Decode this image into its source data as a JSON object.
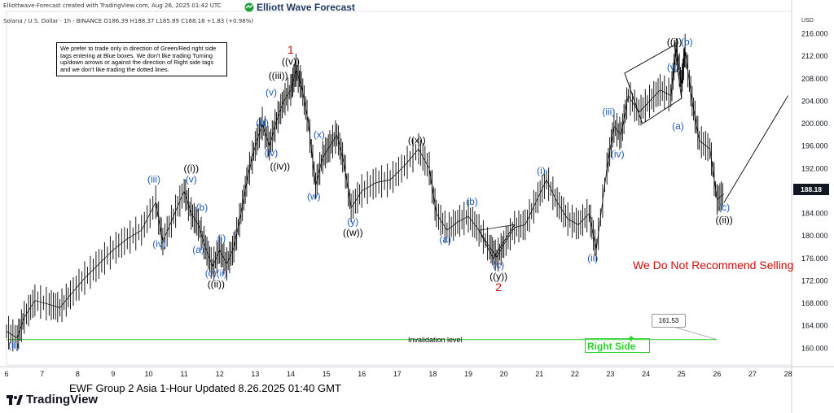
{
  "header": {
    "created_by": "Elliottwave-Forecast created with TradingView.com, Aug 26, 2025 01:42 UTC",
    "symbol_line": "Solana / U.S. Dollar · 1h · BINANCE  O186.39  H188.37  L185.89  C188.18  +1.83 (+0.98%)",
    "brand": "Elliott Wave Forecast",
    "currency": "USD"
  },
  "note": "We prefer to trade only in direction of Green/Red right side tags entering at Blue boxes. We don't like trading Turning up/down arrows or against the direction of Right side tags and we don't like trading the dotted lines.",
  "footer": "EWF Group 2 Asia 1-Hour Updated 8.26.2025 01:40 GMT",
  "tv_logo": "TradingView",
  "warning": "We Do Not Recommend Selling",
  "invalidation": {
    "label": "Invalidation level",
    "price": 161.53,
    "price_label": "161.53"
  },
  "right_side_tag": "Right Side",
  "current_price": "188.18",
  "colors": {
    "wave_blue": "#1e5bb8",
    "wave_black": "#000000",
    "wave_red": "#d10a0a",
    "green": "#2bd12b",
    "candle": "#000000"
  },
  "chart_data": {
    "type": "line",
    "title": "",
    "ylabel": "USD",
    "ylim": [
      157,
      220
    ],
    "xlim": [
      6,
      28.1
    ],
    "y_ticks": [
      160,
      164,
      168,
      172,
      176,
      180,
      184,
      188,
      192,
      196,
      200,
      204,
      208,
      212,
      216
    ],
    "x_ticks": [
      {
        "x": 6,
        "label": "6"
      },
      {
        "x": 7,
        "label": "7"
      },
      {
        "x": 8,
        "label": "8"
      },
      {
        "x": 9,
        "label": "9"
      },
      {
        "x": 10,
        "label": "10"
      },
      {
        "x": 11,
        "label": "11"
      },
      {
        "x": 12,
        "label": "12"
      },
      {
        "x": 13,
        "label": "13"
      },
      {
        "x": 14,
        "label": "14"
      },
      {
        "x": 15,
        "label": "15"
      },
      {
        "x": 16,
        "label": "16"
      },
      {
        "x": 17,
        "label": "17"
      },
      {
        "x": 18,
        "label": "18"
      },
      {
        "x": 19,
        "label": "19"
      },
      {
        "x": 20,
        "label": "20"
      },
      {
        "x": 21,
        "label": "21"
      },
      {
        "x": 22,
        "label": "22"
      },
      {
        "x": 23,
        "label": "23"
      },
      {
        "x": 24,
        "label": "24"
      },
      {
        "x": 25,
        "label": "25"
      },
      {
        "x": 26,
        "label": "26"
      },
      {
        "x": 27,
        "label": "27"
      },
      {
        "x": 28,
        "label": "28"
      }
    ],
    "price_path": [
      [
        6.0,
        163.0
      ],
      [
        6.3,
        161.8
      ],
      [
        6.5,
        165.5
      ],
      [
        6.8,
        168.5
      ],
      [
        7.2,
        167.8
      ],
      [
        7.5,
        167.2
      ],
      [
        7.8,
        169.5
      ],
      [
        8.2,
        172.5
      ],
      [
        8.6,
        175.0
      ],
      [
        9.0,
        177.5
      ],
      [
        9.4,
        179.5
      ],
      [
        9.8,
        181.0
      ],
      [
        10.2,
        186.0
      ],
      [
        10.4,
        179.0
      ],
      [
        10.7,
        183.5
      ],
      [
        11.0,
        188.0
      ],
      [
        11.2,
        184.0
      ],
      [
        11.4,
        182.0
      ],
      [
        11.6,
        178.0
      ],
      [
        11.8,
        174.5
      ],
      [
        12.0,
        177.5
      ],
      [
        12.2,
        175.0
      ],
      [
        12.4,
        178.0
      ],
      [
        12.6,
        184.0
      ],
      [
        12.8,
        191.0
      ],
      [
        13.0,
        196.0
      ],
      [
        13.2,
        200.0
      ],
      [
        13.4,
        196.0
      ],
      [
        13.6,
        200.5
      ],
      [
        13.8,
        204.0
      ],
      [
        14.0,
        206.0
      ],
      [
        14.15,
        209.5
      ],
      [
        14.3,
        207.0
      ],
      [
        14.5,
        200.0
      ],
      [
        14.7,
        189.0
      ],
      [
        14.9,
        194.0
      ],
      [
        15.1,
        196.0
      ],
      [
        15.3,
        198.0
      ],
      [
        15.5,
        193.0
      ],
      [
        15.7,
        185.0
      ],
      [
        16.0,
        188.0
      ],
      [
        16.4,
        189.5
      ],
      [
        16.8,
        190.0
      ],
      [
        17.2,
        192.5
      ],
      [
        17.6,
        195.5
      ],
      [
        17.9,
        192.0
      ],
      [
        18.1,
        184.0
      ],
      [
        18.4,
        181.0
      ],
      [
        18.7,
        182.5
      ],
      [
        19.0,
        183.5
      ],
      [
        19.3,
        181.0
      ],
      [
        19.6,
        178.0
      ],
      [
        19.8,
        176.2
      ],
      [
        20.0,
        178.5
      ],
      [
        20.3,
        181.5
      ],
      [
        20.6,
        182.0
      ],
      [
        20.9,
        186.0
      ],
      [
        21.2,
        190.0
      ],
      [
        21.5,
        186.0
      ],
      [
        21.8,
        183.0
      ],
      [
        22.1,
        182.0
      ],
      [
        22.4,
        184.0
      ],
      [
        22.6,
        177.5
      ],
      [
        22.9,
        192.0
      ],
      [
        23.1,
        199.5
      ],
      [
        23.3,
        198.0
      ],
      [
        23.5,
        205.0
      ],
      [
        23.8,
        202.0
      ],
      [
        24.1,
        204.0
      ],
      [
        24.4,
        206.0
      ],
      [
        24.7,
        205.0
      ],
      [
        24.85,
        213.5
      ],
      [
        25.0,
        207.0
      ],
      [
        25.1,
        213.0
      ],
      [
        25.3,
        204.0
      ],
      [
        25.5,
        197.0
      ],
      [
        25.8,
        195.5
      ],
      [
        26.0,
        186.5
      ],
      [
        26.2,
        187.5
      ]
    ],
    "projection": [
      [
        26.2,
        186.0
      ],
      [
        28.0,
        205.0
      ]
    ],
    "channel_upper": [
      [
        23.4,
        209.0
      ],
      [
        24.8,
        214.0
      ]
    ],
    "channel_lower": [
      [
        23.9,
        200.0
      ],
      [
        25.0,
        204.5
      ]
    ],
    "dotted_triangle": [
      [
        19.3,
        181.0
      ],
      [
        19.7,
        176.0
      ],
      [
        20.3,
        182.0
      ]
    ],
    "invalidation_line": [
      [
        6.0,
        161.53
      ],
      [
        26.0,
        161.53
      ]
    ],
    "labels": [
      {
        "x": 6.2,
        "y": 160.0,
        "text": "(ii)",
        "color": "blue"
      },
      {
        "x": 10.15,
        "y": 189.5,
        "text": "(iii)",
        "color": "blue"
      },
      {
        "x": 10.3,
        "y": 178.0,
        "text": "(iv)",
        "color": "blue"
      },
      {
        "x": 11.2,
        "y": 191.5,
        "text": "((i))",
        "color": "black"
      },
      {
        "x": 11.2,
        "y": 189.5,
        "text": "(v)",
        "color": "blue"
      },
      {
        "x": 11.5,
        "y": 184.5,
        "text": "(b)",
        "color": "blue"
      },
      {
        "x": 11.4,
        "y": 177.0,
        "text": "(a)",
        "color": "blue"
      },
      {
        "x": 12.05,
        "y": 179.0,
        "text": "(i)",
        "color": "blue"
      },
      {
        "x": 11.9,
        "y": 172.8,
        "text": "(c)(ii)",
        "color": "blue"
      },
      {
        "x": 11.9,
        "y": 170.8,
        "text": "((ii))",
        "color": "black"
      },
      {
        "x": 13.2,
        "y": 199.6,
        "text": "(iii)",
        "color": "blue"
      },
      {
        "x": 13.45,
        "y": 194.2,
        "text": "(iv)",
        "color": "blue"
      },
      {
        "x": 13.7,
        "y": 191.8,
        "text": "((iv))",
        "color": "black"
      },
      {
        "x": 13.45,
        "y": 205.0,
        "text": "(v)",
        "color": "blue"
      },
      {
        "x": 13.65,
        "y": 208.0,
        "text": "((iii))",
        "color": "black"
      },
      {
        "x": 14.0,
        "y": 212.5,
        "text": "1",
        "color": "red"
      },
      {
        "x": 14.0,
        "y": 210.5,
        "text": "((v))",
        "color": "black"
      },
      {
        "x": 14.8,
        "y": 197.5,
        "text": "(x)",
        "color": "blue"
      },
      {
        "x": 14.65,
        "y": 186.5,
        "text": "(w)",
        "color": "blue"
      },
      {
        "x": 15.75,
        "y": 182.0,
        "text": "(y)",
        "color": "blue"
      },
      {
        "x": 15.75,
        "y": 180.0,
        "text": "((w))",
        "color": "black"
      },
      {
        "x": 17.55,
        "y": 196.5,
        "text": "((x))",
        "color": "black"
      },
      {
        "x": 19.1,
        "y": 185.5,
        "text": "(b)",
        "color": "blue"
      },
      {
        "x": 18.35,
        "y": 178.8,
        "text": "(a)",
        "color": "blue"
      },
      {
        "x": 19.85,
        "y": 174.2,
        "text": "(c)",
        "color": "blue"
      },
      {
        "x": 19.85,
        "y": 172.2,
        "text": "((y))",
        "color": "black"
      },
      {
        "x": 19.85,
        "y": 170.2,
        "text": "2",
        "color": "red"
      },
      {
        "x": 21.05,
        "y": 191.0,
        "text": "(i)",
        "color": "blue"
      },
      {
        "x": 22.5,
        "y": 175.5,
        "text": "(ii)",
        "color": "blue"
      },
      {
        "x": 22.95,
        "y": 201.5,
        "text": "(iii)",
        "color": "blue"
      },
      {
        "x": 23.2,
        "y": 194.0,
        "text": "(iv)",
        "color": "blue"
      },
      {
        "x": 24.75,
        "y": 209.5,
        "text": "(v)",
        "color": "blue"
      },
      {
        "x": 24.8,
        "y": 214.0,
        "text": "((i))",
        "color": "black"
      },
      {
        "x": 25.15,
        "y": 214.0,
        "text": "(b)",
        "color": "blue"
      },
      {
        "x": 24.9,
        "y": 199.0,
        "text": "(a)",
        "color": "blue"
      },
      {
        "x": 26.2,
        "y": 184.5,
        "text": "(c)",
        "color": "blue"
      },
      {
        "x": 26.2,
        "y": 182.3,
        "text": "((ii))",
        "color": "black"
      }
    ]
  }
}
